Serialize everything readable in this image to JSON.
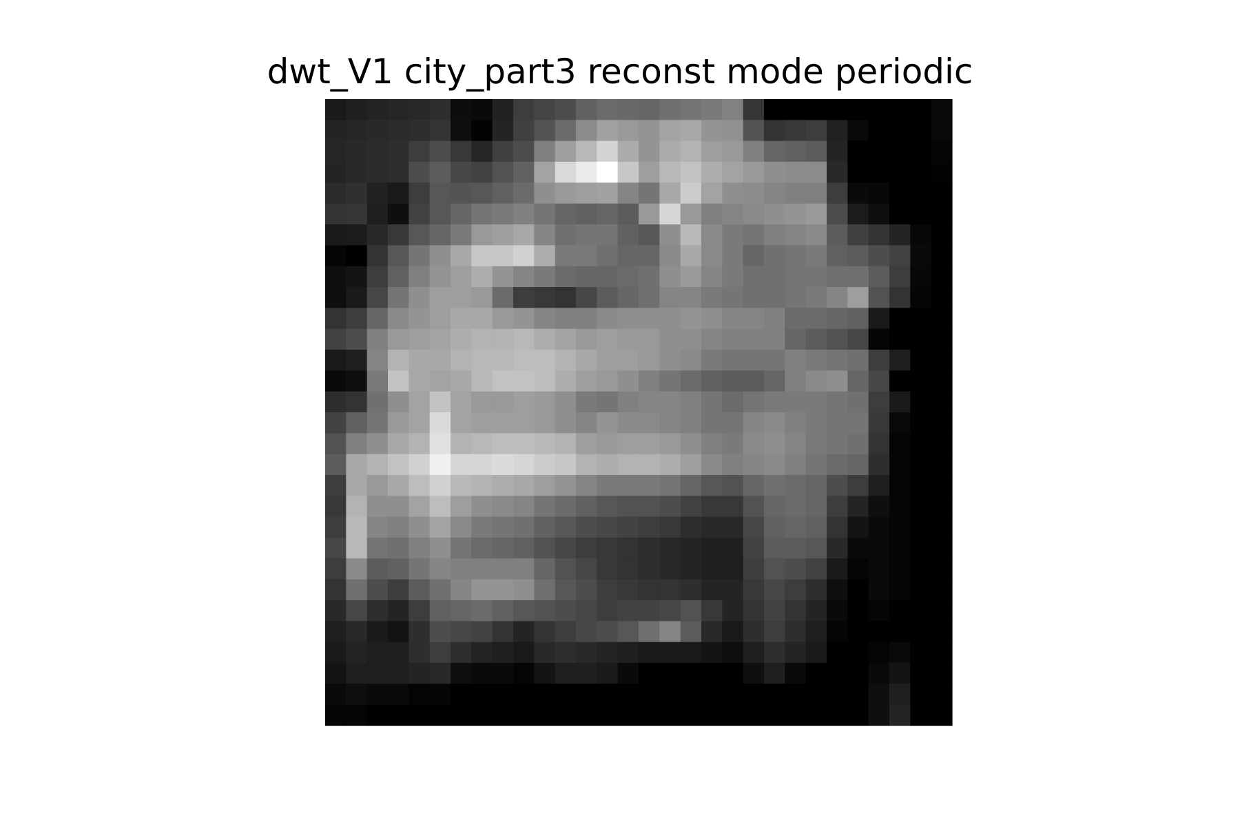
{
  "chart_data": {
    "type": "heatmap",
    "title": "dwt_V1 city_part3 reconst mode periodic",
    "axes": "off",
    "grid": false,
    "legend": "none",
    "colormap": "gray",
    "value_range": [
      0,
      1
    ],
    "rows": 30,
    "cols": 30,
    "values": [
      [
        0.1,
        0.12,
        0.14,
        0.15,
        0.16,
        0.18,
        0.05,
        0.04,
        0.13,
        0.24,
        0.27,
        0.3,
        0.38,
        0.42,
        0.41,
        0.4,
        0.44,
        0.46,
        0.48,
        0.51,
        0.21,
        0.0,
        0.0,
        0.0,
        0.0,
        0.0,
        0.0,
        0.0,
        0.0,
        0.04
      ],
      [
        0.14,
        0.15,
        0.16,
        0.17,
        0.18,
        0.2,
        0.06,
        0.01,
        0.14,
        0.25,
        0.33,
        0.42,
        0.55,
        0.63,
        0.6,
        0.58,
        0.64,
        0.66,
        0.58,
        0.57,
        0.33,
        0.2,
        0.22,
        0.24,
        0.13,
        0.04,
        0.0,
        0.0,
        0.0,
        0.04
      ],
      [
        0.15,
        0.16,
        0.17,
        0.18,
        0.24,
        0.3,
        0.22,
        0.15,
        0.25,
        0.3,
        0.5,
        0.62,
        0.72,
        0.83,
        0.67,
        0.58,
        0.67,
        0.7,
        0.62,
        0.6,
        0.5,
        0.4,
        0.38,
        0.36,
        0.14,
        0.0,
        0.0,
        0.0,
        0.0,
        0.02
      ],
      [
        0.14,
        0.16,
        0.17,
        0.18,
        0.3,
        0.36,
        0.28,
        0.26,
        0.32,
        0.38,
        0.64,
        0.85,
        0.92,
        1.0,
        0.78,
        0.62,
        0.72,
        0.76,
        0.68,
        0.64,
        0.6,
        0.56,
        0.55,
        0.55,
        0.16,
        0.0,
        0.0,
        0.0,
        0.0,
        0.01
      ],
      [
        0.17,
        0.19,
        0.13,
        0.1,
        0.24,
        0.34,
        0.33,
        0.34,
        0.38,
        0.42,
        0.56,
        0.6,
        0.62,
        0.63,
        0.52,
        0.46,
        0.66,
        0.8,
        0.64,
        0.56,
        0.55,
        0.52,
        0.5,
        0.5,
        0.24,
        0.04,
        0.03,
        0.0,
        0.0,
        0.0
      ],
      [
        0.2,
        0.21,
        0.12,
        0.06,
        0.26,
        0.34,
        0.4,
        0.46,
        0.48,
        0.5,
        0.46,
        0.4,
        0.38,
        0.4,
        0.36,
        0.6,
        0.84,
        0.6,
        0.5,
        0.52,
        0.54,
        0.56,
        0.58,
        0.6,
        0.3,
        0.11,
        0.06,
        0.0,
        0.0,
        0.0
      ],
      [
        0.1,
        0.11,
        0.16,
        0.22,
        0.34,
        0.4,
        0.48,
        0.6,
        0.62,
        0.66,
        0.52,
        0.44,
        0.46,
        0.46,
        0.38,
        0.34,
        0.56,
        0.72,
        0.54,
        0.48,
        0.46,
        0.5,
        0.52,
        0.54,
        0.36,
        0.25,
        0.2,
        0.14,
        0.03,
        0.0
      ],
      [
        0.02,
        0.0,
        0.2,
        0.34,
        0.46,
        0.56,
        0.66,
        0.78,
        0.78,
        0.82,
        0.68,
        0.48,
        0.48,
        0.44,
        0.4,
        0.4,
        0.54,
        0.66,
        0.54,
        0.48,
        0.4,
        0.44,
        0.46,
        0.48,
        0.38,
        0.36,
        0.3,
        0.26,
        0.04,
        0.0
      ],
      [
        0.06,
        0.08,
        0.24,
        0.38,
        0.5,
        0.58,
        0.62,
        0.68,
        0.58,
        0.52,
        0.48,
        0.42,
        0.4,
        0.4,
        0.42,
        0.44,
        0.56,
        0.6,
        0.52,
        0.48,
        0.44,
        0.44,
        0.46,
        0.46,
        0.44,
        0.44,
        0.36,
        0.24,
        0.03,
        0.0
      ],
      [
        0.06,
        0.1,
        0.28,
        0.46,
        0.56,
        0.62,
        0.62,
        0.6,
        0.42,
        0.24,
        0.22,
        0.2,
        0.28,
        0.36,
        0.4,
        0.44,
        0.52,
        0.52,
        0.48,
        0.46,
        0.44,
        0.44,
        0.46,
        0.48,
        0.52,
        0.62,
        0.32,
        0.2,
        0.02,
        0.0
      ],
      [
        0.2,
        0.24,
        0.4,
        0.54,
        0.58,
        0.62,
        0.66,
        0.66,
        0.6,
        0.58,
        0.52,
        0.5,
        0.5,
        0.54,
        0.56,
        0.56,
        0.56,
        0.58,
        0.56,
        0.52,
        0.52,
        0.5,
        0.42,
        0.42,
        0.4,
        0.38,
        0.1,
        0.0,
        0.0,
        0.0
      ],
      [
        0.26,
        0.3,
        0.5,
        0.6,
        0.62,
        0.64,
        0.68,
        0.7,
        0.7,
        0.72,
        0.68,
        0.64,
        0.6,
        0.62,
        0.6,
        0.6,
        0.56,
        0.56,
        0.52,
        0.5,
        0.5,
        0.5,
        0.4,
        0.36,
        0.32,
        0.28,
        0.02,
        0.0,
        0.0,
        0.0
      ],
      [
        0.1,
        0.12,
        0.52,
        0.7,
        0.66,
        0.66,
        0.7,
        0.72,
        0.72,
        0.74,
        0.74,
        0.7,
        0.66,
        0.62,
        0.62,
        0.6,
        0.56,
        0.54,
        0.48,
        0.46,
        0.46,
        0.46,
        0.5,
        0.48,
        0.46,
        0.44,
        0.24,
        0.12,
        0.0,
        0.0
      ],
      [
        0.04,
        0.06,
        0.48,
        0.76,
        0.66,
        0.64,
        0.66,
        0.72,
        0.76,
        0.76,
        0.74,
        0.68,
        0.62,
        0.6,
        0.56,
        0.5,
        0.46,
        0.42,
        0.38,
        0.36,
        0.36,
        0.4,
        0.5,
        0.54,
        0.56,
        0.4,
        0.28,
        0.0,
        0.0,
        0.0
      ],
      [
        0.18,
        0.2,
        0.44,
        0.56,
        0.64,
        0.76,
        0.64,
        0.6,
        0.6,
        0.62,
        0.6,
        0.56,
        0.48,
        0.46,
        0.5,
        0.52,
        0.52,
        0.5,
        0.46,
        0.42,
        0.46,
        0.48,
        0.48,
        0.48,
        0.46,
        0.44,
        0.24,
        0.1,
        0.0,
        0.0
      ],
      [
        0.26,
        0.38,
        0.46,
        0.6,
        0.64,
        0.86,
        0.64,
        0.62,
        0.62,
        0.62,
        0.6,
        0.56,
        0.52,
        0.58,
        0.54,
        0.54,
        0.52,
        0.5,
        0.46,
        0.46,
        0.52,
        0.54,
        0.5,
        0.48,
        0.46,
        0.46,
        0.22,
        0.04,
        0.0,
        0.0
      ],
      [
        0.32,
        0.5,
        0.56,
        0.66,
        0.7,
        0.88,
        0.7,
        0.72,
        0.74,
        0.74,
        0.72,
        0.7,
        0.62,
        0.6,
        0.62,
        0.62,
        0.6,
        0.56,
        0.5,
        0.48,
        0.54,
        0.56,
        0.52,
        0.48,
        0.46,
        0.44,
        0.2,
        0.02,
        0.0,
        0.0
      ],
      [
        0.36,
        0.66,
        0.7,
        0.76,
        0.82,
        0.94,
        0.84,
        0.84,
        0.86,
        0.84,
        0.8,
        0.78,
        0.7,
        0.68,
        0.7,
        0.7,
        0.68,
        0.62,
        0.54,
        0.5,
        0.52,
        0.54,
        0.5,
        0.46,
        0.42,
        0.4,
        0.18,
        0.02,
        0.0,
        0.0
      ],
      [
        0.24,
        0.66,
        0.6,
        0.66,
        0.74,
        0.82,
        0.72,
        0.7,
        0.68,
        0.66,
        0.62,
        0.58,
        0.52,
        0.48,
        0.48,
        0.48,
        0.46,
        0.4,
        0.34,
        0.32,
        0.4,
        0.44,
        0.42,
        0.4,
        0.3,
        0.24,
        0.12,
        0.02,
        0.0,
        0.0
      ],
      [
        0.22,
        0.7,
        0.56,
        0.56,
        0.64,
        0.74,
        0.62,
        0.56,
        0.54,
        0.52,
        0.46,
        0.42,
        0.38,
        0.34,
        0.32,
        0.32,
        0.3,
        0.26,
        0.22,
        0.22,
        0.32,
        0.4,
        0.42,
        0.4,
        0.24,
        0.14,
        0.06,
        0.02,
        0.0,
        0.0
      ],
      [
        0.24,
        0.72,
        0.52,
        0.5,
        0.56,
        0.64,
        0.54,
        0.48,
        0.46,
        0.44,
        0.38,
        0.34,
        0.3,
        0.28,
        0.26,
        0.24,
        0.22,
        0.18,
        0.16,
        0.16,
        0.28,
        0.38,
        0.4,
        0.38,
        0.2,
        0.08,
        0.04,
        0.02,
        0.0,
        0.0
      ],
      [
        0.28,
        0.72,
        0.46,
        0.44,
        0.5,
        0.56,
        0.46,
        0.42,
        0.4,
        0.38,
        0.32,
        0.28,
        0.24,
        0.22,
        0.2,
        0.18,
        0.16,
        0.14,
        0.12,
        0.12,
        0.26,
        0.36,
        0.36,
        0.34,
        0.16,
        0.04,
        0.04,
        0.02,
        0.0,
        0.0
      ],
      [
        0.24,
        0.54,
        0.36,
        0.38,
        0.46,
        0.52,
        0.5,
        0.5,
        0.5,
        0.5,
        0.4,
        0.32,
        0.28,
        0.22,
        0.2,
        0.18,
        0.16,
        0.14,
        0.12,
        0.12,
        0.24,
        0.32,
        0.3,
        0.26,
        0.1,
        0.02,
        0.04,
        0.02,
        0.0,
        0.0
      ],
      [
        0.2,
        0.44,
        0.3,
        0.24,
        0.36,
        0.44,
        0.52,
        0.58,
        0.58,
        0.56,
        0.44,
        0.34,
        0.3,
        0.24,
        0.22,
        0.2,
        0.2,
        0.18,
        0.14,
        0.14,
        0.22,
        0.28,
        0.24,
        0.18,
        0.06,
        0.0,
        0.04,
        0.02,
        0.0,
        0.0
      ],
      [
        0.16,
        0.28,
        0.18,
        0.14,
        0.24,
        0.38,
        0.4,
        0.42,
        0.38,
        0.34,
        0.32,
        0.3,
        0.28,
        0.24,
        0.26,
        0.26,
        0.28,
        0.32,
        0.22,
        0.14,
        0.2,
        0.26,
        0.2,
        0.14,
        0.04,
        0.0,
        0.02,
        0.0,
        0.0,
        0.0
      ],
      [
        0.12,
        0.16,
        0.1,
        0.08,
        0.18,
        0.3,
        0.28,
        0.26,
        0.2,
        0.14,
        0.2,
        0.24,
        0.28,
        0.3,
        0.34,
        0.44,
        0.52,
        0.36,
        0.16,
        0.1,
        0.18,
        0.24,
        0.18,
        0.12,
        0.02,
        0.0,
        0.0,
        0.0,
        0.0,
        0.0
      ],
      [
        0.1,
        0.14,
        0.12,
        0.12,
        0.18,
        0.24,
        0.18,
        0.14,
        0.12,
        0.1,
        0.16,
        0.18,
        0.16,
        0.14,
        0.12,
        0.1,
        0.1,
        0.1,
        0.08,
        0.06,
        0.12,
        0.18,
        0.14,
        0.1,
        0.0,
        0.0,
        0.02,
        0.04,
        0.0,
        0.0
      ],
      [
        0.08,
        0.12,
        0.12,
        0.12,
        0.14,
        0.16,
        0.06,
        0.04,
        0.04,
        0.02,
        0.08,
        0.12,
        0.12,
        0.1,
        0.04,
        0.0,
        0.0,
        0.0,
        0.0,
        0.0,
        0.06,
        0.12,
        0.04,
        0.0,
        0.0,
        0.0,
        0.04,
        0.08,
        0.0,
        0.0
      ],
      [
        0.04,
        0.06,
        0.04,
        0.04,
        0.02,
        0.02,
        0.0,
        0.0,
        0.0,
        0.0,
        0.0,
        0.0,
        0.0,
        0.0,
        0.0,
        0.0,
        0.0,
        0.0,
        0.0,
        0.0,
        0.0,
        0.0,
        0.0,
        0.0,
        0.0,
        0.0,
        0.06,
        0.12,
        0.0,
        0.0
      ],
      [
        0.02,
        0.02,
        0.0,
        0.0,
        0.0,
        0.0,
        0.0,
        0.0,
        0.0,
        0.0,
        0.0,
        0.0,
        0.0,
        0.0,
        0.0,
        0.0,
        0.0,
        0.0,
        0.0,
        0.0,
        0.0,
        0.0,
        0.0,
        0.0,
        0.0,
        0.0,
        0.06,
        0.14,
        0.0,
        0.0
      ]
    ]
  }
}
